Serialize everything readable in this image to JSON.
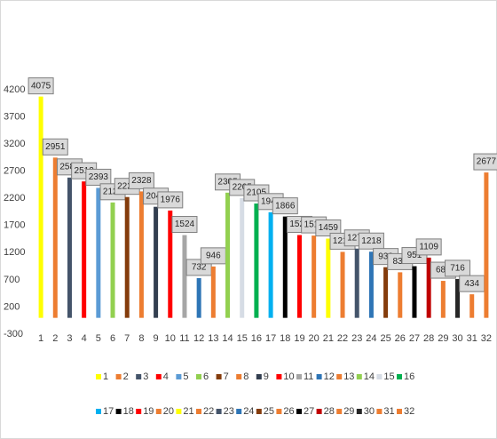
{
  "chart_data": {
    "type": "bar",
    "categories": [
      "1",
      "2",
      "3",
      "4",
      "5",
      "6",
      "7",
      "8",
      "9",
      "10",
      "11",
      "12",
      "13",
      "14",
      "15",
      "16",
      "17",
      "18",
      "19",
      "20",
      "21",
      "22",
      "23",
      "24",
      "25",
      "26",
      "27",
      "28",
      "29",
      "30",
      "31",
      "32"
    ],
    "values": [
      4075,
      2951,
      2583,
      2512,
      2393,
      2125,
      2225,
      2328,
      2045,
      1976,
      1524,
      732,
      946,
      2305,
      2205,
      2105,
      1945,
      1866,
      1525,
      1515,
      1459,
      1215,
      1275,
      1218,
      933,
      839,
      951,
      1109,
      681,
      716,
      434,
      2677
    ],
    "colors": [
      "#ffff00",
      "#ed7d31",
      "#44546a",
      "#ff0000",
      "#5b9bd5",
      "#92d050",
      "#843c0c",
      "#ed7d31",
      "#333f50",
      "#ff0000",
      "#a6a6a6",
      "#2e75b6",
      "#ed7d31",
      "#92d050",
      "#d6dce5",
      "#00b050",
      "#00b0f0",
      "#000000",
      "#ff0000",
      "#ed7d31",
      "#ffff00",
      "#ed7d31",
      "#44546a",
      "#2e75b6",
      "#843c0c",
      "#ed7d31",
      "#000000",
      "#c00000",
      "#ed7d31",
      "#262626",
      "#ed7d31",
      "#ed7d31"
    ],
    "ylim": [
      -300,
      4200
    ],
    "yticks": [
      -300,
      200,
      700,
      1200,
      1700,
      2200,
      2700,
      3200,
      3700,
      4200
    ],
    "legend_position": "bottom"
  }
}
